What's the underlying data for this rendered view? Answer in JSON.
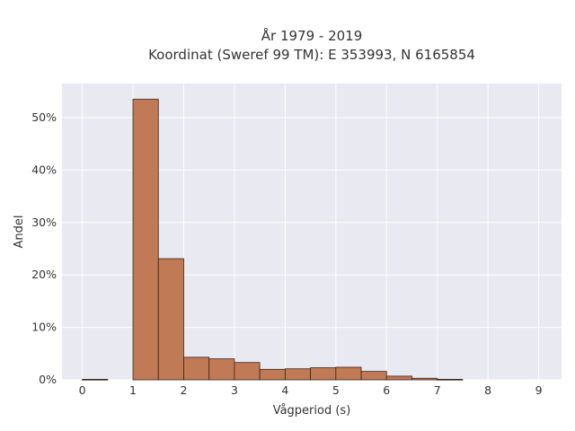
{
  "chart_data": {
    "type": "bar",
    "title_line1": "År 1979 - 2019",
    "title_line2": "Koordinat (Sweref 99 TM): E 353993, N 6165854",
    "xlabel": "Vågperiod (s)",
    "ylabel": "Andel",
    "bin_width": 0.5,
    "bins": [
      {
        "x0": 0.0,
        "x1": 0.5,
        "value": 0.1
      },
      {
        "x0": 1.0,
        "x1": 1.5,
        "value": 53.5
      },
      {
        "x0": 1.5,
        "x1": 2.0,
        "value": 23.1
      },
      {
        "x0": 2.0,
        "x1": 2.5,
        "value": 4.3
      },
      {
        "x0": 2.5,
        "x1": 3.0,
        "value": 4.0
      },
      {
        "x0": 3.0,
        "x1": 3.5,
        "value": 3.3
      },
      {
        "x0": 3.5,
        "x1": 4.0,
        "value": 2.0
      },
      {
        "x0": 4.0,
        "x1": 4.5,
        "value": 2.1
      },
      {
        "x0": 4.5,
        "x1": 5.0,
        "value": 2.3
      },
      {
        "x0": 5.0,
        "x1": 5.5,
        "value": 2.4
      },
      {
        "x0": 5.5,
        "x1": 6.0,
        "value": 1.6
      },
      {
        "x0": 6.0,
        "x1": 6.5,
        "value": 0.7
      },
      {
        "x0": 6.5,
        "x1": 7.0,
        "value": 0.3
      },
      {
        "x0": 7.0,
        "x1": 7.5,
        "value": 0.1
      }
    ],
    "xlim": [
      -0.4,
      9.45
    ],
    "ylim": [
      0,
      56.5
    ],
    "xticks": [
      0,
      1,
      2,
      3,
      4,
      5,
      6,
      7,
      8,
      9
    ],
    "yticks": [
      0,
      10,
      20,
      30,
      40,
      50
    ],
    "ytick_suffix": "%",
    "grid": true,
    "bar_color": "#c07a55",
    "bar_edge_color": "#3a2418",
    "plot_bg_color": "#e9e9f1"
  }
}
